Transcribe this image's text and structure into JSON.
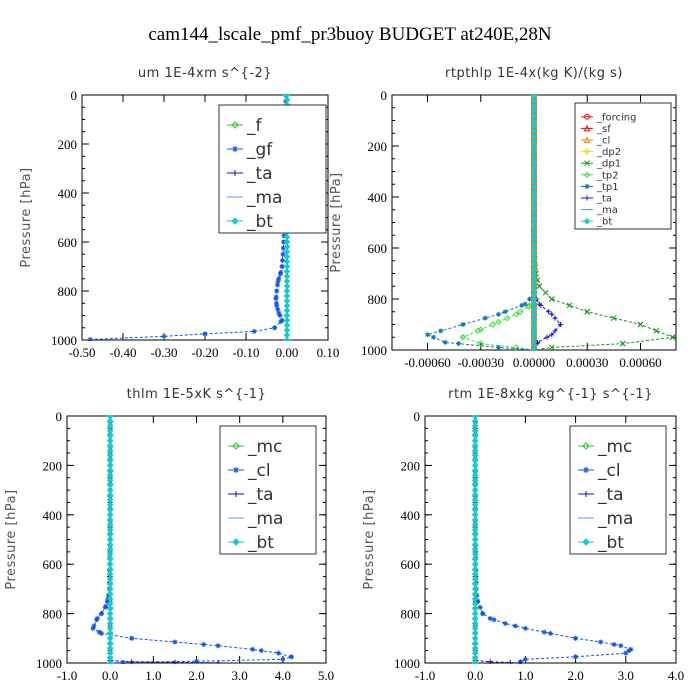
{
  "figure": {
    "title": "cam144_lscale_pmf_pr3buoy  BUDGET at240E,28N"
  },
  "colors": {
    "green": "#22cc22",
    "blue": "#1155ee",
    "darkblue": "#1111cc",
    "lightblue": "#5599ff",
    "cyan": "#11cccc",
    "red": "#dd1111",
    "orange": "#ee8800",
    "yellow": "#dddd00",
    "darkgreen": "#119911",
    "lightgreen": "#44dd44",
    "teal": "#1177bb"
  },
  "chart_data": [
    {
      "type": "line",
      "title": "um  1E-4xm s^{-2}",
      "ylabel": "Pressure [hPa]",
      "xlim": [
        -0.5,
        0.1
      ],
      "ylim": [
        1000,
        0
      ],
      "xticks": [
        -0.5,
        -0.4,
        -0.3,
        -0.2,
        -0.1,
        0.0,
        0.1
      ],
      "xtick_labels": [
        "-0.50",
        "-0.40",
        "-0.30",
        "-0.20",
        "-0.10",
        "0.00",
        "0.10"
      ],
      "yticks": [
        0,
        200,
        400,
        600,
        800,
        1000
      ],
      "ytick_labels": [
        "0",
        "200",
        "400",
        "600",
        "800",
        "1000"
      ],
      "legend": {
        "position": "top-right",
        "size": "large"
      },
      "series": [
        {
          "name": "_f",
          "color": "#22cc22",
          "marker": "diamond",
          "x": [
            0,
            0
          ],
          "y": [
            0,
            1000
          ]
        },
        {
          "name": "_gf",
          "color": "#1155ee",
          "marker": "star",
          "x": [
            -0.003,
            -0.003,
            -0.003,
            -0.003,
            -0.004,
            -0.006,
            -0.008,
            -0.012,
            -0.016,
            -0.022,
            -0.025,
            -0.027,
            -0.025,
            -0.02,
            -0.012,
            -0.03,
            -0.08,
            -0.2,
            -0.3,
            -0.48
          ],
          "y": [
            0,
            100,
            200,
            300,
            400,
            500,
            600,
            700,
            730,
            760,
            800,
            830,
            860,
            890,
            920,
            950,
            965,
            975,
            985,
            998
          ]
        },
        {
          "name": "_ta",
          "color": "#1111cc",
          "marker": "plus",
          "x": [
            0,
            0,
            0
          ],
          "y": [
            0,
            900,
            1000
          ]
        },
        {
          "name": "_ma",
          "color": "#5599ff",
          "marker": "dash",
          "x": [
            0,
            0
          ],
          "y": [
            0,
            1000
          ]
        },
        {
          "name": "_bt",
          "color": "#11cccc",
          "marker": "dot",
          "x": [
            0,
            0
          ],
          "y": [
            0,
            1000
          ]
        }
      ]
    },
    {
      "type": "line",
      "title": "rtpthlp  1E-4x(kg K)/(kg s)",
      "ylabel": "Pressure [hPa]",
      "xlim": [
        -0.0008,
        0.0008
      ],
      "ylim": [
        1000,
        0
      ],
      "xticks": [
        -0.0006,
        -0.0003,
        0.0,
        0.0003,
        0.0006
      ],
      "xtick_labels": [
        "-0.00060",
        "-0.00030",
        "0.00000",
        "0.00030",
        "0.00060"
      ],
      "yticks": [
        0,
        200,
        400,
        600,
        800,
        1000
      ],
      "ytick_labels": [
        "0",
        "200",
        "400",
        "600",
        "800",
        "1000"
      ],
      "legend": {
        "position": "top-right",
        "size": "small"
      },
      "series": [
        {
          "name": "_forcing",
          "color": "#dd1111",
          "marker": "circle",
          "x": [
            0,
            0
          ],
          "y": [
            0,
            1000
          ]
        },
        {
          "name": "_sf",
          "color": "#dd1111",
          "marker": "triangle",
          "x": [
            0,
            0
          ],
          "y": [
            0,
            1000
          ]
        },
        {
          "name": "_cl",
          "color": "#ee8800",
          "marker": "triangle",
          "x": [
            0,
            0
          ],
          "y": [
            0,
            1000
          ]
        },
        {
          "name": "_dp2",
          "color": "#dddd00",
          "marker": "diamond",
          "x": [
            0,
            0
          ],
          "y": [
            0,
            1000
          ]
        },
        {
          "name": "_dp1",
          "color": "#119911",
          "marker": "x",
          "x": [
            0,
            0,
            1e-05,
            3e-05,
            0.0001,
            0.0003,
            0.0006,
            0.00078,
            0.0005,
            0.0001,
            0
          ],
          "y": [
            0,
            600,
            700,
            750,
            800,
            850,
            900,
            950,
            975,
            990,
            1000
          ]
        },
        {
          "name": "_tp2",
          "color": "#44dd44",
          "marker": "diamond",
          "x": [
            0,
            0,
            -3e-05,
            -0.0001,
            -0.0002,
            -0.0003,
            -0.0004,
            -0.0003,
            -0.0001,
            0
          ],
          "y": [
            0,
            800,
            830,
            860,
            890,
            920,
            950,
            975,
            990,
            1000
          ]
        },
        {
          "name": "_tp1",
          "color": "#1177bb",
          "marker": "star",
          "x": [
            0,
            0,
            -5e-05,
            -0.0002,
            -0.0004,
            -0.0006,
            -0.0005,
            -0.0002,
            0
          ],
          "y": [
            0,
            780,
            820,
            860,
            900,
            940,
            970,
            990,
            1000
          ]
        },
        {
          "name": "_ta",
          "color": "#1111cc",
          "marker": "plus",
          "x": [
            0,
            0,
            3e-05,
            0.0001,
            0.00015,
            0.0001,
            2e-05,
            0
          ],
          "y": [
            0,
            780,
            820,
            860,
            900,
            940,
            970,
            1000
          ]
        },
        {
          "name": "_ma",
          "color": "#5599ff",
          "marker": "dash",
          "x": [
            0,
            0
          ],
          "y": [
            0,
            1000
          ]
        },
        {
          "name": "_bt",
          "color": "#11cccc",
          "marker": "dot",
          "x": [
            0,
            0
          ],
          "y": [
            0,
            1000
          ]
        }
      ]
    },
    {
      "type": "line",
      "title": "thlm  1E-5xK s^{-1}",
      "ylabel": "Pressure [hPa]",
      "xlim": [
        -1.0,
        5.0
      ],
      "ylim": [
        1000,
        0
      ],
      "xticks": [
        -1,
        0,
        1,
        2,
        3,
        4,
        5
      ],
      "xtick_labels": [
        "-1.0",
        "0.0",
        "1.0",
        "2.0",
        "3.0",
        "4.0",
        "5.0"
      ],
      "yticks": [
        0,
        200,
        400,
        600,
        800,
        1000
      ],
      "ytick_labels": [
        "0",
        "200",
        "400",
        "600",
        "800",
        "1000"
      ],
      "legend": {
        "position": "top-right",
        "size": "large"
      },
      "series": [
        {
          "name": "_mc",
          "color": "#22cc22",
          "marker": "diamond",
          "x": [
            0,
            0
          ],
          "y": [
            0,
            1000
          ]
        },
        {
          "name": "_cl",
          "color": "#1155ee",
          "marker": "star",
          "x": [
            0,
            0,
            0,
            -0.02,
            -0.05,
            -0.1,
            -0.2,
            -0.3,
            -0.4,
            -0.2,
            0.5,
            1.5,
            2.5,
            3.3,
            3.9,
            4.2,
            4.0,
            2.0,
            0.3,
            0
          ],
          "y": [
            0,
            200,
            500,
            700,
            740,
            770,
            800,
            820,
            860,
            880,
            900,
            915,
            930,
            945,
            960,
            975,
            985,
            993,
            998,
            1000
          ]
        },
        {
          "name": "_ta",
          "color": "#1111cc",
          "marker": "plus",
          "x": [
            0,
            0,
            0.5,
            1.5,
            2.5
          ],
          "y": [
            0,
            990,
            995,
            997,
            999
          ]
        },
        {
          "name": "_ma",
          "color": "#5599ff",
          "marker": "dash",
          "x": [
            0,
            0
          ],
          "y": [
            0,
            1000
          ]
        },
        {
          "name": "_bt",
          "color": "#11cccc",
          "marker": "dot",
          "x": [
            0,
            0
          ],
          "y": [
            0,
            1000
          ]
        }
      ]
    },
    {
      "type": "line",
      "title": "rtm  1E-8xkg kg^{-1} s^{-1}",
      "ylabel": "Pressure [hPa]",
      "xlim": [
        -1.0,
        4.0
      ],
      "ylim": [
        1000,
        0
      ],
      "xticks": [
        -1,
        0,
        1,
        2,
        3,
        4
      ],
      "xtick_labels": [
        "-1.0",
        "0.0",
        "1.0",
        "2.0",
        "3.0",
        "4.0"
      ],
      "yticks": [
        0,
        200,
        400,
        600,
        800,
        1000
      ],
      "ytick_labels": [
        "0",
        "200",
        "400",
        "600",
        "800",
        "1000"
      ],
      "legend": {
        "position": "top-right",
        "size": "large"
      },
      "series": [
        {
          "name": "_mc",
          "color": "#22cc22",
          "marker": "diamond",
          "x": [
            0,
            0
          ],
          "y": [
            0,
            1000
          ]
        },
        {
          "name": "_cl",
          "color": "#1155ee",
          "marker": "star",
          "x": [
            0,
            0,
            0.02,
            0.05,
            0.15,
            0.3,
            0.6,
            1.0,
            1.5,
            2.0,
            2.5,
            2.9,
            3.1,
            3.0,
            2.0,
            1.0,
            0.9,
            0.9
          ],
          "y": [
            0,
            500,
            700,
            750,
            800,
            820,
            840,
            860,
            880,
            900,
            915,
            930,
            945,
            960,
            975,
            985,
            995,
            1000
          ]
        },
        {
          "name": "_ta",
          "color": "#1111cc",
          "marker": "plus",
          "x": [
            0,
            0,
            0.3,
            0.7,
            0.9
          ],
          "y": [
            0,
            990,
            995,
            998,
            1000
          ]
        },
        {
          "name": "_ma",
          "color": "#5599ff",
          "marker": "dash",
          "x": [
            0,
            0
          ],
          "y": [
            0,
            1000
          ]
        },
        {
          "name": "_bt",
          "color": "#11cccc",
          "marker": "dot",
          "x": [
            0,
            0
          ],
          "y": [
            0,
            1000
          ]
        }
      ]
    }
  ]
}
